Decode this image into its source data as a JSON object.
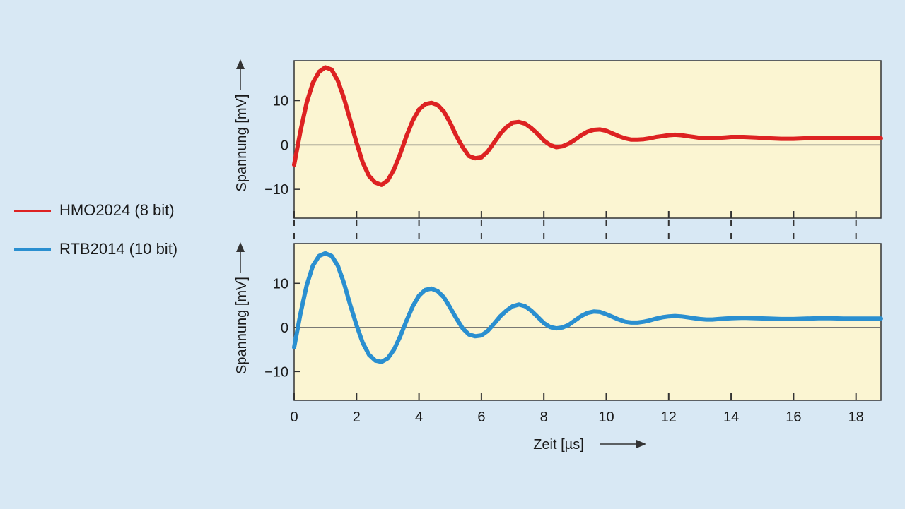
{
  "colors": {
    "background": "#d8e8f4",
    "plot_background": "#fbf5d2",
    "hmo": "#dd2222",
    "rtb": "#2a8fd0",
    "axis": "#333333",
    "zero_line": "#666666"
  },
  "legend": {
    "items": [
      {
        "label": "HMO2024 (8 bit)",
        "color": "#dd2222"
      },
      {
        "label": "RTB2014 (10 bit)",
        "color": "#2a8fd0"
      }
    ]
  },
  "chart_data": [
    {
      "type": "line",
      "title": "",
      "xlabel": "",
      "ylabel": "Spannung [mV]",
      "xlim": [
        0,
        18.8
      ],
      "ylim": [
        -16.5,
        19
      ],
      "yticks": [
        -10,
        0,
        10
      ],
      "ytick_labels": [
        "−10",
        "0",
        "10"
      ],
      "xticks": [
        0,
        2,
        4,
        6,
        8,
        10,
        12,
        14,
        16,
        18
      ],
      "grid": false,
      "legend_position": "left",
      "series": [
        {
          "name": "HMO2024 (8 bit)",
          "color": "#dd2222",
          "x": [
            0,
            0.2,
            0.4,
            0.6,
            0.8,
            1.0,
            1.2,
            1.4,
            1.6,
            1.8,
            2.0,
            2.2,
            2.4,
            2.6,
            2.8,
            3.0,
            3.2,
            3.4,
            3.6,
            3.8,
            4.0,
            4.2,
            4.4,
            4.6,
            4.8,
            5.0,
            5.2,
            5.4,
            5.6,
            5.8,
            6.0,
            6.2,
            6.4,
            6.6,
            6.8,
            7.0,
            7.2,
            7.4,
            7.6,
            7.8,
            8.0,
            8.2,
            8.4,
            8.6,
            8.8,
            9.0,
            9.2,
            9.4,
            9.6,
            9.8,
            10.0,
            10.2,
            10.4,
            10.6,
            10.8,
            11.0,
            11.2,
            11.4,
            11.6,
            11.8,
            12.0,
            12.2,
            12.4,
            12.6,
            12.8,
            13.0,
            13.2,
            13.4,
            13.6,
            13.8,
            14.0,
            14.4,
            14.8,
            15.2,
            15.6,
            16.0,
            16.4,
            16.8,
            17.2,
            17.6,
            18.0,
            18.4,
            18.8
          ],
          "y": [
            -4.5,
            3.0,
            9.5,
            14.0,
            16.5,
            17.5,
            17.0,
            14.5,
            10.5,
            5.5,
            0.5,
            -4.0,
            -7.0,
            -8.5,
            -9.0,
            -8.0,
            -5.5,
            -2.0,
            2.0,
            5.5,
            8.0,
            9.2,
            9.5,
            9.0,
            7.5,
            5.0,
            2.0,
            -0.5,
            -2.5,
            -3.0,
            -2.8,
            -1.5,
            0.5,
            2.5,
            4.0,
            5.0,
            5.2,
            4.8,
            3.8,
            2.5,
            1.0,
            0.0,
            -0.5,
            -0.3,
            0.3,
            1.2,
            2.2,
            3.0,
            3.4,
            3.5,
            3.2,
            2.6,
            2.0,
            1.5,
            1.2,
            1.2,
            1.3,
            1.5,
            1.8,
            2.0,
            2.2,
            2.3,
            2.2,
            2.0,
            1.8,
            1.6,
            1.5,
            1.5,
            1.6,
            1.7,
            1.8,
            1.8,
            1.7,
            1.5,
            1.4,
            1.4,
            1.5,
            1.6,
            1.5,
            1.5,
            1.5,
            1.5,
            1.5
          ]
        }
      ]
    },
    {
      "type": "line",
      "title": "",
      "xlabel": "Zeit [µs]",
      "ylabel": "Spannung [mV]",
      "xlim": [
        0,
        18.8
      ],
      "ylim": [
        -16.5,
        19
      ],
      "yticks": [
        -10,
        0,
        10
      ],
      "ytick_labels": [
        "−10",
        "0",
        "10"
      ],
      "xticks": [
        0,
        2,
        4,
        6,
        8,
        10,
        12,
        14,
        16,
        18
      ],
      "xtick_labels": [
        "0",
        "2",
        "4",
        "6",
        "8",
        "10",
        "12",
        "14",
        "16",
        "18"
      ],
      "grid": false,
      "legend_position": "left",
      "series": [
        {
          "name": "RTB2014 (10 bit)",
          "color": "#2a8fd0",
          "x": [
            0,
            0.2,
            0.4,
            0.6,
            0.8,
            1.0,
            1.2,
            1.4,
            1.6,
            1.8,
            2.0,
            2.2,
            2.4,
            2.6,
            2.8,
            3.0,
            3.2,
            3.4,
            3.6,
            3.8,
            4.0,
            4.2,
            4.4,
            4.6,
            4.8,
            5.0,
            5.2,
            5.4,
            5.6,
            5.8,
            6.0,
            6.2,
            6.4,
            6.6,
            6.8,
            7.0,
            7.2,
            7.4,
            7.6,
            7.8,
            8.0,
            8.2,
            8.4,
            8.6,
            8.8,
            9.0,
            9.2,
            9.4,
            9.6,
            9.8,
            10.0,
            10.2,
            10.4,
            10.6,
            10.8,
            11.0,
            11.2,
            11.4,
            11.6,
            11.8,
            12.0,
            12.2,
            12.4,
            12.6,
            12.8,
            13.0,
            13.2,
            13.4,
            13.6,
            13.8,
            14.0,
            14.4,
            14.8,
            15.2,
            15.6,
            16.0,
            16.4,
            16.8,
            17.2,
            17.6,
            18.0,
            18.4,
            18.8
          ],
          "y": [
            -4.5,
            3.0,
            9.5,
            14.0,
            16.2,
            16.8,
            16.2,
            14.0,
            10.0,
            5.0,
            0.5,
            -3.5,
            -6.2,
            -7.5,
            -7.8,
            -7.0,
            -5.0,
            -2.0,
            1.5,
            4.8,
            7.2,
            8.5,
            8.8,
            8.2,
            6.8,
            4.5,
            2.0,
            -0.2,
            -1.6,
            -2.0,
            -1.8,
            -0.8,
            0.8,
            2.5,
            3.8,
            4.8,
            5.2,
            4.8,
            3.8,
            2.4,
            1.0,
            0.1,
            -0.2,
            0.0,
            0.6,
            1.6,
            2.6,
            3.3,
            3.6,
            3.5,
            3.0,
            2.4,
            1.8,
            1.3,
            1.1,
            1.1,
            1.3,
            1.6,
            2.0,
            2.3,
            2.5,
            2.6,
            2.5,
            2.3,
            2.1,
            1.9,
            1.8,
            1.8,
            1.9,
            2.0,
            2.1,
            2.2,
            2.1,
            2.0,
            1.9,
            1.9,
            2.0,
            2.1,
            2.1,
            2.0,
            2.0,
            2.0,
            2.0
          ]
        }
      ]
    }
  ]
}
